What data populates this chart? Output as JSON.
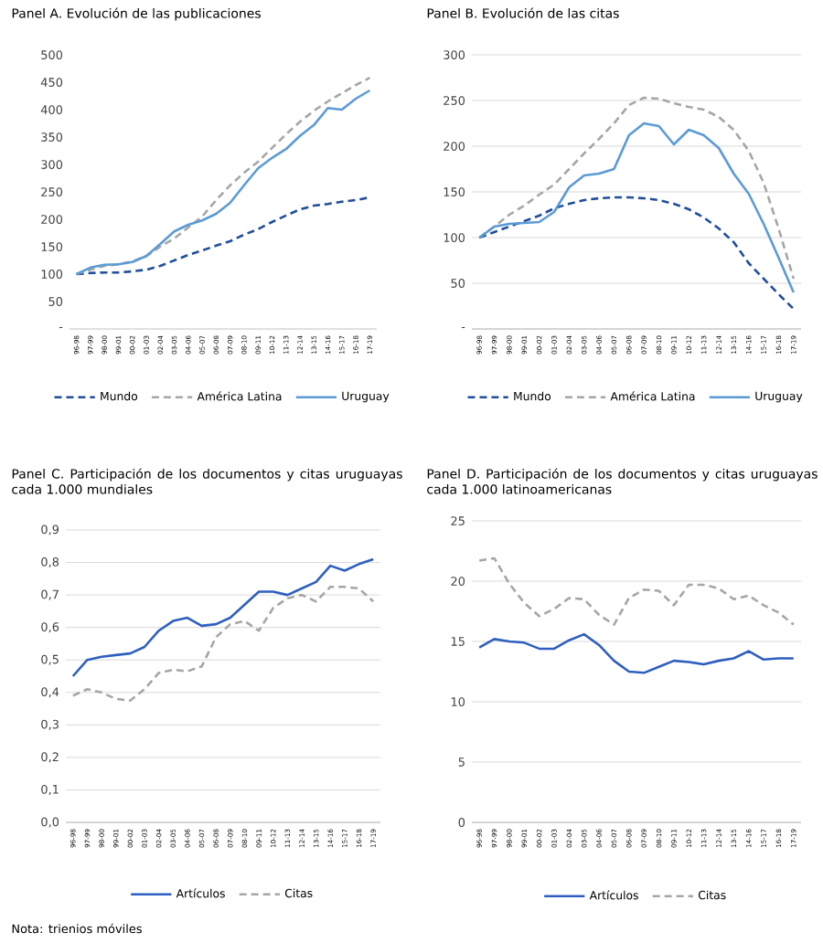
{
  "chart_data": [
    {
      "type": "line",
      "title": "Panel A. Evolución de las publicaciones",
      "categories": [
        "96-98",
        "97-99",
        "98-00",
        "99-01",
        "00-02",
        "01-03",
        "02-04",
        "03-05",
        "04-06",
        "05-07",
        "06-08",
        "07-09",
        "08-10",
        "09-11",
        "10-12",
        "11-13",
        "12-14",
        "13-15",
        "14-16",
        "15-17",
        "16-18",
        "17-19"
      ],
      "ylim": [
        0,
        500
      ],
      "yticks": [
        {
          "value": 0,
          "label": "-"
        },
        50,
        100,
        150,
        200,
        250,
        300,
        350,
        400,
        450,
        500
      ],
      "grid": false,
      "legend": "bottom",
      "series": [
        {
          "name": "Mundo",
          "color": "#1f4e9c",
          "line_style": "dashed",
          "values": [
            100,
            102,
            103,
            103,
            105,
            108,
            115,
            125,
            135,
            143,
            152,
            160,
            172,
            182,
            195,
            207,
            218,
            225,
            228,
            232,
            235,
            240
          ]
        },
        {
          "name": "América Latina",
          "color": "#a6a6a6",
          "line_style": "dashed",
          "values": [
            100,
            108,
            115,
            118,
            123,
            133,
            150,
            165,
            185,
            205,
            235,
            262,
            285,
            305,
            330,
            355,
            378,
            398,
            415,
            430,
            445,
            458
          ]
        },
        {
          "name": "Uruguay",
          "color": "#5b9bd5",
          "line_style": "solid",
          "values": [
            100,
            112,
            117,
            118,
            122,
            133,
            155,
            178,
            190,
            198,
            210,
            230,
            262,
            293,
            312,
            328,
            352,
            372,
            403,
            400,
            420,
            435
          ]
        }
      ]
    },
    {
      "type": "line",
      "title": "Panel B. Evolución de las citas",
      "categories": [
        "96-98",
        "97-99",
        "98-00",
        "99-01",
        "00-02",
        "01-03",
        "02-04",
        "03-05",
        "04-06",
        "05-07",
        "06-08",
        "07-09",
        "08-10",
        "09-11",
        "10-12",
        "11-13",
        "12-14",
        "13-15",
        "14-16",
        "15-17",
        "16-18",
        "17-19"
      ],
      "ylim": [
        0,
        300
      ],
      "yticks": [
        {
          "value": 0,
          "label": "-"
        },
        50,
        100,
        150,
        200,
        250,
        300
      ],
      "grid": "y",
      "legend": "bottom",
      "series": [
        {
          "name": "Mundo",
          "color": "#1f4e9c",
          "line_style": "dashed",
          "values": [
            100,
            106,
            112,
            118,
            124,
            132,
            137,
            141,
            143,
            144,
            144,
            143,
            141,
            137,
            131,
            122,
            110,
            95,
            72,
            55,
            38,
            22
          ]
        },
        {
          "name": "América Latina",
          "color": "#a6a6a6",
          "line_style": "dashed",
          "values": [
            100,
            112,
            125,
            135,
            147,
            158,
            175,
            192,
            208,
            225,
            245,
            253,
            252,
            247,
            243,
            240,
            232,
            218,
            195,
            160,
            110,
            55
          ]
        },
        {
          "name": "Uruguay",
          "color": "#5b9bd5",
          "line_style": "solid",
          "values": [
            100,
            112,
            115,
            116,
            117,
            128,
            155,
            168,
            170,
            175,
            212,
            225,
            222,
            202,
            218,
            212,
            198,
            170,
            148,
            115,
            78,
            40
          ]
        }
      ]
    },
    {
      "type": "line",
      "title": "Panel C. Participación de los documentos y citas uruguayas cada 1.000 mundiales",
      "categories": [
        "96-98",
        "97-99",
        "98-00",
        "99-01",
        "00-02",
        "01-03",
        "02-04",
        "03-05",
        "04-06",
        "05-07",
        "06-08",
        "07-09",
        "08-10",
        "09-11",
        "10-12",
        "11-13",
        "12-14",
        "13-15",
        "14-16",
        "15-17",
        "16-18",
        "17-19"
      ],
      "ylim": [
        0,
        0.9
      ],
      "yticks": [
        {
          "value": 0,
          "label": "0,0"
        },
        {
          "value": 0.1,
          "label": "0,1"
        },
        {
          "value": 0.2,
          "label": "0,2"
        },
        {
          "value": 0.3,
          "label": "0,3"
        },
        {
          "value": 0.4,
          "label": "0,4"
        },
        {
          "value": 0.5,
          "label": "0,5"
        },
        {
          "value": 0.6,
          "label": "0,6"
        },
        {
          "value": 0.7,
          "label": "0,7"
        },
        {
          "value": 0.8,
          "label": "0,8"
        },
        {
          "value": 0.9,
          "label": "0,9"
        }
      ],
      "grid": "y",
      "legend": "bottom",
      "annotations": [
        "Nota: trienios móviles"
      ],
      "series": [
        {
          "name": "Artículos",
          "color": "#2e5fbf",
          "line_style": "solid",
          "values": [
            0.45,
            0.5,
            0.51,
            0.515,
            0.52,
            0.54,
            0.59,
            0.62,
            0.63,
            0.605,
            0.61,
            0.63,
            0.67,
            0.71,
            0.71,
            0.7,
            0.72,
            0.74,
            0.79,
            0.775,
            0.795,
            0.81
          ]
        },
        {
          "name": "Citas",
          "color": "#a6a6a6",
          "line_style": "dashed",
          "values": [
            0.39,
            0.41,
            0.4,
            0.38,
            0.375,
            0.41,
            0.46,
            0.47,
            0.465,
            0.48,
            0.57,
            0.61,
            0.62,
            0.59,
            0.66,
            0.69,
            0.7,
            0.68,
            0.725,
            0.725,
            0.72,
            0.68
          ]
        }
      ]
    },
    {
      "type": "line",
      "title": "Panel D. Participación de los documentos y citas uruguayas cada 1.000 latinoamericanas",
      "categories": [
        "96-98",
        "97-99",
        "98-00",
        "99-01",
        "00-02",
        "01-03",
        "02-04",
        "03-05",
        "04-06",
        "05-07",
        "06-08",
        "07-09",
        "08-10",
        "09-11",
        "10-12",
        "11-13",
        "12-14",
        "13-15",
        "14-16",
        "15-17",
        "16-18",
        "17-19"
      ],
      "ylim": [
        0,
        25
      ],
      "yticks": [
        0,
        5,
        10,
        15,
        20,
        25
      ],
      "grid": "y",
      "legend": "bottom",
      "series": [
        {
          "name": "Artículos",
          "color": "#2e5fbf",
          "line_style": "solid",
          "values": [
            14.5,
            15.2,
            15.0,
            14.9,
            14.4,
            14.4,
            15.1,
            15.6,
            14.7,
            13.4,
            12.5,
            12.4,
            12.9,
            13.4,
            13.3,
            13.1,
            13.4,
            13.6,
            14.2,
            13.5,
            13.6,
            13.6
          ]
        },
        {
          "name": "Citas",
          "color": "#a6a6a6",
          "line_style": "dashed",
          "values": [
            21.7,
            21.9,
            19.8,
            18.2,
            17.1,
            17.7,
            18.6,
            18.5,
            17.2,
            16.4,
            18.6,
            19.3,
            19.2,
            18.0,
            19.7,
            19.7,
            19.4,
            18.5,
            18.8,
            18.0,
            17.4,
            16.4
          ]
        }
      ]
    }
  ]
}
